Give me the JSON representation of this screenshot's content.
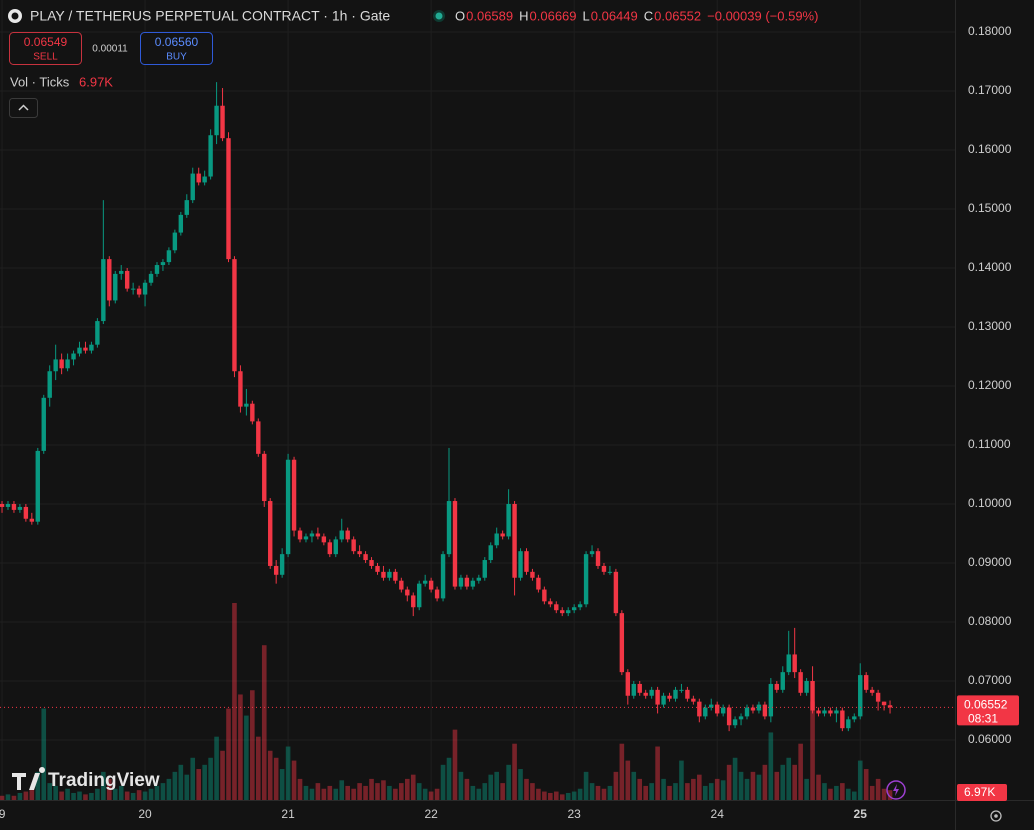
{
  "chart_data": {
    "type": "candlestick",
    "header": {
      "title": "PLAY / TETHERUS PERPETUAL CONTRACT · 1h · Gate",
      "ohlc": [
        {
          "label": "O",
          "value": "0.06589"
        },
        {
          "label": "H",
          "value": "0.06669"
        },
        {
          "label": "L",
          "value": "0.06449"
        },
        {
          "label": "C",
          "value": "0.06552"
        }
      ],
      "change": "−0.00039 (−0.59%)"
    },
    "trade": {
      "sell_price": "0.06549",
      "sell": "SELL",
      "spread": "0.00011",
      "buy_price": "0.06560",
      "buy": "BUY"
    },
    "volume_legend": {
      "label": "Vol · Ticks",
      "value": "6.97K"
    },
    "watermark": "TradingView",
    "last_price": {
      "label": "0.06552",
      "countdown": "08:31"
    },
    "up_color": "#089981",
    "down_color": "#f23645",
    "ylim": [
      0.04983,
      0.18542
    ],
    "yticks": [
      {
        "value": 0.06,
        "label": "0.06000"
      },
      {
        "value": 0.07,
        "label": "0.07000"
      },
      {
        "value": 0.08,
        "label": "0.08000"
      },
      {
        "value": 0.09,
        "label": "0.09000"
      },
      {
        "value": 0.1,
        "label": "0.10000"
      },
      {
        "value": 0.11,
        "label": "0.11000"
      },
      {
        "value": 0.12,
        "label": "0.12000"
      },
      {
        "value": 0.13,
        "label": "0.13000"
      },
      {
        "value": 0.14,
        "label": "0.14000"
      },
      {
        "value": 0.15,
        "label": "0.15000"
      },
      {
        "value": 0.16,
        "label": "0.16000"
      },
      {
        "value": 0.17,
        "label": "0.17000"
      },
      {
        "value": 0.18,
        "label": "0.18000"
      }
    ],
    "xlim": [
      -0.34,
      159.9
    ],
    "xticks": [
      {
        "value": 0,
        "label": "9"
      },
      {
        "value": 24,
        "label": "20"
      },
      {
        "value": 48,
        "label": "21"
      },
      {
        "value": 72,
        "label": "22"
      },
      {
        "value": 96,
        "label": "23"
      },
      {
        "value": 120,
        "label": "24"
      },
      {
        "value": 144,
        "label": "25"
      }
    ],
    "grid": true,
    "candles": [
      [
        0.1,
        0.1005,
        0.0985,
        0.0995
      ],
      [
        0.0995,
        0.1005,
        0.099,
        0.1
      ],
      [
        0.1,
        0.1005,
        0.0985,
        0.099
      ],
      [
        0.099,
        0.1,
        0.0985,
        0.0995
      ],
      [
        0.0995,
        0.1,
        0.097,
        0.0975
      ],
      [
        0.0975,
        0.0985,
        0.0965,
        0.097
      ],
      [
        0.097,
        0.1095,
        0.0965,
        0.109
      ],
      [
        0.109,
        0.1185,
        0.1085,
        0.118
      ],
      [
        0.118,
        0.1235,
        0.1165,
        0.1225
      ],
      [
        0.1225,
        0.127,
        0.121,
        0.1245
      ],
      [
        0.1245,
        0.1255,
        0.122,
        0.123
      ],
      [
        0.123,
        0.1255,
        0.1225,
        0.1245
      ],
      [
        0.1245,
        0.126,
        0.1235,
        0.1255
      ],
      [
        0.1255,
        0.1275,
        0.125,
        0.1265
      ],
      [
        0.1265,
        0.1275,
        0.1255,
        0.126
      ],
      [
        0.126,
        0.1275,
        0.1255,
        0.127
      ],
      [
        0.127,
        0.1315,
        0.1265,
        0.131
      ],
      [
        0.131,
        0.1515,
        0.1305,
        0.1415
      ],
      [
        0.1415,
        0.142,
        0.1335,
        0.1345
      ],
      [
        0.1345,
        0.1395,
        0.134,
        0.139
      ],
      [
        0.139,
        0.1405,
        0.138,
        0.1395
      ],
      [
        0.1395,
        0.14,
        0.136,
        0.1365
      ],
      [
        0.1365,
        0.1375,
        0.1355,
        0.1365
      ],
      [
        0.1365,
        0.137,
        0.135,
        0.1355
      ],
      [
        0.1355,
        0.138,
        0.1335,
        0.1375
      ],
      [
        0.1375,
        0.1395,
        0.137,
        0.139
      ],
      [
        0.139,
        0.141,
        0.1385,
        0.1405
      ],
      [
        0.1405,
        0.1415,
        0.1395,
        0.141
      ],
      [
        0.141,
        0.1435,
        0.1405,
        0.143
      ],
      [
        0.143,
        0.1465,
        0.1425,
        0.146
      ],
      [
        0.146,
        0.1495,
        0.1455,
        0.149
      ],
      [
        0.149,
        0.1525,
        0.1485,
        0.1515
      ],
      [
        0.1515,
        0.157,
        0.151,
        0.156
      ],
      [
        0.156,
        0.157,
        0.154,
        0.1545
      ],
      [
        0.1545,
        0.1565,
        0.154,
        0.1555
      ],
      [
        0.1555,
        0.1635,
        0.155,
        0.1625
      ],
      [
        0.1625,
        0.1715,
        0.161,
        0.1675
      ],
      [
        0.1675,
        0.1705,
        0.1615,
        0.162
      ],
      [
        0.162,
        0.163,
        0.141,
        0.1415
      ],
      [
        0.1415,
        0.142,
        0.1215,
        0.1225
      ],
      [
        0.1225,
        0.1235,
        0.1155,
        0.1165
      ],
      [
        0.1165,
        0.1195,
        0.115,
        0.117
      ],
      [
        0.117,
        0.1175,
        0.1135,
        0.114
      ],
      [
        0.114,
        0.1145,
        0.108,
        0.1085
      ],
      [
        0.1085,
        0.109,
        0.0995,
        0.1005
      ],
      [
        0.1005,
        0.101,
        0.089,
        0.0895
      ],
      [
        0.0895,
        0.0905,
        0.0865,
        0.088
      ],
      [
        0.088,
        0.0925,
        0.0875,
        0.0915
      ],
      [
        0.0915,
        0.1085,
        0.091,
        0.1075
      ],
      [
        0.1075,
        0.108,
        0.0945,
        0.0955
      ],
      [
        0.0955,
        0.096,
        0.0935,
        0.094
      ],
      [
        0.094,
        0.095,
        0.0935,
        0.0945
      ],
      [
        0.0945,
        0.0955,
        0.0935,
        0.095
      ],
      [
        0.095,
        0.096,
        0.094,
        0.0945
      ],
      [
        0.0945,
        0.095,
        0.093,
        0.0935
      ],
      [
        0.0935,
        0.094,
        0.091,
        0.0915
      ],
      [
        0.0915,
        0.0945,
        0.091,
        0.094
      ],
      [
        0.094,
        0.0975,
        0.0935,
        0.0955
      ],
      [
        0.0955,
        0.096,
        0.0935,
        0.094
      ],
      [
        0.094,
        0.0945,
        0.0915,
        0.092
      ],
      [
        0.092,
        0.093,
        0.091,
        0.0915
      ],
      [
        0.0915,
        0.092,
        0.09,
        0.0905
      ],
      [
        0.0905,
        0.091,
        0.089,
        0.0895
      ],
      [
        0.0895,
        0.09,
        0.088,
        0.0885
      ],
      [
        0.0885,
        0.0895,
        0.087,
        0.0875
      ],
      [
        0.0875,
        0.089,
        0.087,
        0.0885
      ],
      [
        0.0885,
        0.089,
        0.0865,
        0.087
      ],
      [
        0.087,
        0.0875,
        0.085,
        0.0855
      ],
      [
        0.0855,
        0.086,
        0.0835,
        0.0845
      ],
      [
        0.0845,
        0.085,
        0.081,
        0.0825
      ],
      [
        0.0825,
        0.087,
        0.082,
        0.0865
      ],
      [
        0.0865,
        0.088,
        0.086,
        0.087
      ],
      [
        0.087,
        0.0875,
        0.085,
        0.0855
      ],
      [
        0.0855,
        0.086,
        0.0835,
        0.084
      ],
      [
        0.084,
        0.092,
        0.0835,
        0.0915
      ],
      [
        0.0915,
        0.1095,
        0.091,
        0.1005
      ],
      [
        0.1005,
        0.101,
        0.0855,
        0.086
      ],
      [
        0.086,
        0.088,
        0.0855,
        0.0875
      ],
      [
        0.0875,
        0.088,
        0.0855,
        0.086
      ],
      [
        0.086,
        0.0875,
        0.0855,
        0.087
      ],
      [
        0.087,
        0.088,
        0.0865,
        0.0875
      ],
      [
        0.0875,
        0.091,
        0.087,
        0.0905
      ],
      [
        0.0905,
        0.0935,
        0.09,
        0.093
      ],
      [
        0.093,
        0.096,
        0.0925,
        0.095
      ],
      [
        0.095,
        0.0955,
        0.094,
        0.0945
      ],
      [
        0.0945,
        0.1025,
        0.094,
        0.1
      ],
      [
        0.1,
        0.1005,
        0.0845,
        0.0875
      ],
      [
        0.0875,
        0.0925,
        0.087,
        0.092
      ],
      [
        0.092,
        0.0925,
        0.088,
        0.0885
      ],
      [
        0.0885,
        0.089,
        0.087,
        0.0875
      ],
      [
        0.0875,
        0.088,
        0.085,
        0.0855
      ],
      [
        0.0855,
        0.086,
        0.083,
        0.0835
      ],
      [
        0.0835,
        0.084,
        0.0825,
        0.083
      ],
      [
        0.083,
        0.0835,
        0.0815,
        0.082
      ],
      [
        0.082,
        0.0825,
        0.081,
        0.0815
      ],
      [
        0.0815,
        0.0825,
        0.081,
        0.082
      ],
      [
        0.082,
        0.083,
        0.0815,
        0.0825
      ],
      [
        0.0825,
        0.0835,
        0.082,
        0.083
      ],
      [
        0.083,
        0.092,
        0.0825,
        0.0915
      ],
      [
        0.0915,
        0.093,
        0.091,
        0.092
      ],
      [
        0.092,
        0.0925,
        0.089,
        0.0895
      ],
      [
        0.0895,
        0.09,
        0.088,
        0.0885
      ],
      [
        0.0885,
        0.0895,
        0.088,
        0.0885
      ],
      [
        0.0885,
        0.089,
        0.081,
        0.0815
      ],
      [
        0.0815,
        0.082,
        0.071,
        0.0715
      ],
      [
        0.0715,
        0.072,
        0.066,
        0.0675
      ],
      [
        0.0675,
        0.07,
        0.067,
        0.0695
      ],
      [
        0.0695,
        0.07,
        0.0675,
        0.068
      ],
      [
        0.068,
        0.0685,
        0.067,
        0.0675
      ],
      [
        0.0675,
        0.069,
        0.067,
        0.0685
      ],
      [
        0.0685,
        0.069,
        0.0645,
        0.066
      ],
      [
        0.066,
        0.068,
        0.0655,
        0.0675
      ],
      [
        0.0675,
        0.068,
        0.0665,
        0.067
      ],
      [
        0.067,
        0.069,
        0.0665,
        0.0685
      ],
      [
        0.0685,
        0.0695,
        0.068,
        0.0685
      ],
      [
        0.0685,
        0.069,
        0.0665,
        0.067
      ],
      [
        0.067,
        0.0675,
        0.066,
        0.0665
      ],
      [
        0.0665,
        0.067,
        0.063,
        0.064
      ],
      [
        0.064,
        0.066,
        0.0635,
        0.0655
      ],
      [
        0.0655,
        0.067,
        0.065,
        0.066
      ],
      [
        0.066,
        0.0665,
        0.064,
        0.0645
      ],
      [
        0.0645,
        0.066,
        0.064,
        0.0655
      ],
      [
        0.0655,
        0.066,
        0.0615,
        0.0625
      ],
      [
        0.0625,
        0.064,
        0.062,
        0.0635
      ],
      [
        0.0635,
        0.0645,
        0.0625,
        0.064
      ],
      [
        0.064,
        0.066,
        0.0635,
        0.0655
      ],
      [
        0.0655,
        0.066,
        0.0645,
        0.065
      ],
      [
        0.065,
        0.0665,
        0.0645,
        0.066
      ],
      [
        0.066,
        0.0665,
        0.0635,
        0.064
      ],
      [
        0.064,
        0.0705,
        0.063,
        0.0695
      ],
      [
        0.0695,
        0.07,
        0.068,
        0.0685
      ],
      [
        0.0685,
        0.0725,
        0.068,
        0.0715
      ],
      [
        0.0715,
        0.0785,
        0.071,
        0.0745
      ],
      [
        0.0745,
        0.079,
        0.0705,
        0.0715
      ],
      [
        0.0715,
        0.072,
        0.0675,
        0.068
      ],
      [
        0.068,
        0.0705,
        0.0675,
        0.07
      ],
      [
        0.07,
        0.0725,
        0.0645,
        0.065
      ],
      [
        0.065,
        0.0655,
        0.064,
        0.0645
      ],
      [
        0.0645,
        0.0655,
        0.064,
        0.065
      ],
      [
        0.065,
        0.0655,
        0.064,
        0.0645
      ],
      [
        0.0645,
        0.0655,
        0.063,
        0.065
      ],
      [
        0.065,
        0.0655,
        0.0615,
        0.062
      ],
      [
        0.062,
        0.064,
        0.0615,
        0.0635
      ],
      [
        0.0635,
        0.0645,
        0.063,
        0.064
      ],
      [
        0.064,
        0.073,
        0.0635,
        0.071
      ],
      [
        0.071,
        0.0715,
        0.068,
        0.0685
      ],
      [
        0.0685,
        0.069,
        0.0675,
        0.068
      ],
      [
        0.068,
        0.0685,
        0.065,
        0.0665
      ],
      [
        0.0665,
        0.0665,
        0.065,
        0.0659
      ],
      [
        0.06589,
        0.06669,
        0.06449,
        0.06552
      ]
    ],
    "volumes": [
      3,
      4,
      3,
      5,
      6,
      8,
      20,
      65,
      12,
      10,
      6,
      8,
      5,
      6,
      4,
      5,
      8,
      20,
      15,
      8,
      10,
      6,
      5,
      7,
      6,
      8,
      10,
      12,
      15,
      20,
      25,
      18,
      30,
      22,
      25,
      30,
      45,
      35,
      65,
      140,
      75,
      60,
      78,
      45,
      110,
      35,
      30,
      22,
      38,
      28,
      15,
      10,
      8,
      12,
      8,
      10,
      8,
      14,
      10,
      8,
      12,
      10,
      15,
      12,
      14,
      10,
      8,
      12,
      15,
      18,
      12,
      8,
      6,
      8,
      25,
      30,
      50,
      20,
      15,
      10,
      8,
      12,
      18,
      20,
      12,
      25,
      40,
      22,
      15,
      12,
      8,
      6,
      5,
      6,
      4,
      5,
      6,
      8,
      20,
      12,
      10,
      8,
      10,
      20,
      40,
      28,
      20,
      15,
      10,
      12,
      38,
      15,
      10,
      12,
      28,
      12,
      15,
      18,
      10,
      12,
      15,
      14,
      25,
      30,
      20,
      15,
      20,
      18,
      25,
      48,
      20,
      25,
      30,
      25,
      40,
      15,
      70,
      18,
      12,
      8,
      10,
      12,
      8,
      6,
      28,
      22,
      10,
      15,
      8,
      6.97
    ]
  }
}
